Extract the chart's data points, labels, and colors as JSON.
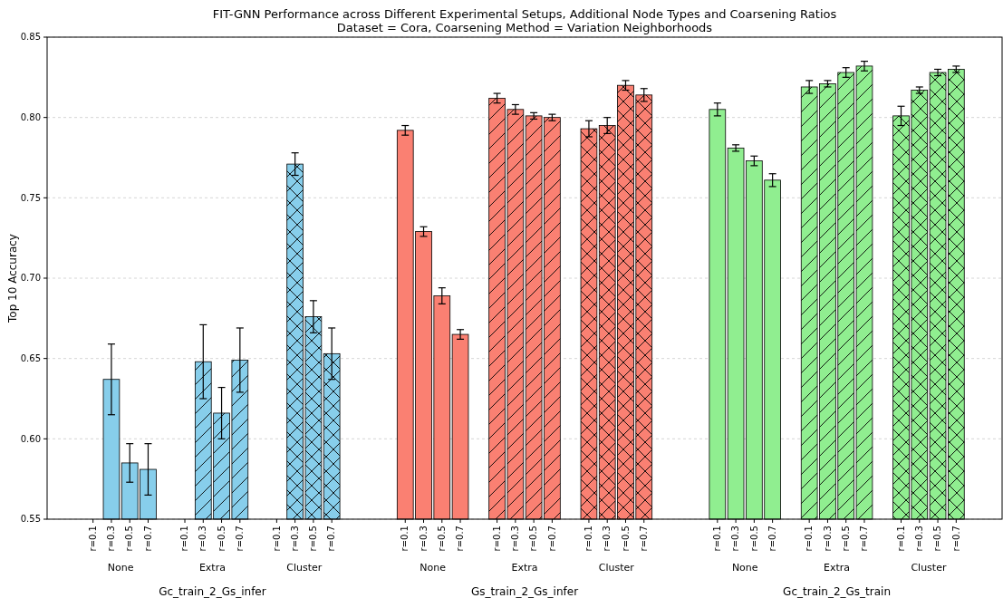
{
  "chart_data": {
    "type": "bar",
    "title": "FIT-GNN Performance across Different Experimental Setups, Additional Node Types and Coarsening Ratios",
    "subtitle": "Dataset = Cora, Coarsening Method = Variation Neighborhoods",
    "ylabel": "Top 10 Accuracy",
    "categories": [
      null,
      null,
      "r=0.1",
      "r=0.3",
      "r=0.5",
      "r=0.7",
      null,
      "r=0.1",
      "r=0.3",
      "r=0.5",
      "r=0.7",
      null,
      "r=0.1",
      "r=0.3",
      "r=0.5",
      "r=0.7",
      null,
      null,
      null,
      "r=0.1",
      "r=0.3",
      "r=0.5",
      "r=0.7",
      null,
      "r=0.1",
      "r=0.3",
      "r=0.5",
      "r=0.7",
      null,
      "r=0.1",
      "r=0.3",
      "r=0.5",
      "r=0.7",
      null,
      null,
      null,
      "r=0.1",
      "r=0.3",
      "r=0.5",
      "r=0.7",
      null,
      "r=0.1",
      "r=0.3",
      "r=0.5",
      "r=0.7",
      null,
      "r=0.1",
      "r=0.3",
      "r=0.5",
      "r=0.7",
      null,
      null
    ],
    "series": [
      {
        "color": "#87ceeb",
        "values": [
          null,
          null,
          null,
          0.637,
          0.585,
          0.581,
          null,
          null,
          0.648,
          0.616,
          0.649,
          null,
          null,
          0.771,
          0.676,
          0.653,
          null,
          null,
          null,
          null,
          null,
          null,
          null,
          null,
          null,
          null,
          null,
          null,
          null,
          null,
          null,
          null,
          null,
          null,
          null,
          null,
          null,
          null,
          null,
          null,
          null,
          null,
          null,
          null,
          null,
          null,
          null,
          null,
          null,
          null,
          null,
          null
        ],
        "errors": [
          null,
          null,
          null,
          0.022,
          0.012,
          0.016,
          null,
          null,
          0.023,
          0.016,
          0.02,
          null,
          null,
          0.007,
          0.01,
          0.016,
          null,
          null,
          null,
          null,
          null,
          null,
          null,
          null,
          null,
          null,
          null,
          null,
          null,
          null,
          null,
          null,
          null,
          null,
          null,
          null,
          null,
          null,
          null,
          null,
          null,
          null,
          null,
          null,
          null,
          null,
          null,
          null,
          null,
          null,
          null,
          null
        ]
      },
      {
        "color": "#fa8072",
        "values": [
          null,
          null,
          null,
          null,
          null,
          null,
          null,
          null,
          null,
          null,
          null,
          null,
          null,
          null,
          null,
          null,
          null,
          null,
          null,
          0.792,
          0.729,
          0.689,
          0.665,
          null,
          0.812,
          0.805,
          0.801,
          0.8,
          null,
          0.793,
          0.795,
          0.82,
          0.814,
          null,
          null,
          null,
          null,
          null,
          null,
          null,
          null,
          null,
          null,
          null,
          null,
          null,
          null,
          null,
          null,
          null,
          null,
          null
        ],
        "errors": [
          null,
          null,
          null,
          null,
          null,
          null,
          null,
          null,
          null,
          null,
          null,
          null,
          null,
          null,
          null,
          null,
          null,
          null,
          null,
          0.003,
          0.003,
          0.005,
          0.003,
          null,
          0.003,
          0.003,
          0.002,
          0.002,
          null,
          0.005,
          0.005,
          0.003,
          0.004,
          null,
          null,
          null,
          null,
          null,
          null,
          null,
          null,
          null,
          null,
          null,
          null,
          null,
          null,
          null,
          null,
          null,
          null,
          null
        ]
      },
      {
        "color": "#90ee90",
        "values": [
          null,
          null,
          null,
          null,
          null,
          null,
          null,
          null,
          null,
          null,
          null,
          null,
          null,
          null,
          null,
          null,
          null,
          null,
          null,
          null,
          null,
          null,
          null,
          null,
          null,
          null,
          null,
          null,
          null,
          null,
          null,
          null,
          null,
          null,
          null,
          null,
          0.805,
          0.781,
          0.773,
          0.761,
          null,
          0.819,
          0.821,
          0.828,
          0.832,
          null,
          0.801,
          0.817,
          0.828,
          0.83,
          null,
          null
        ],
        "errors": [
          null,
          null,
          null,
          null,
          null,
          null,
          null,
          null,
          null,
          null,
          null,
          null,
          null,
          null,
          null,
          null,
          null,
          null,
          null,
          null,
          null,
          null,
          null,
          null,
          null,
          null,
          null,
          null,
          null,
          null,
          null,
          null,
          null,
          null,
          null,
          null,
          0.004,
          0.002,
          0.003,
          0.004,
          null,
          0.004,
          0.002,
          0.003,
          0.003,
          null,
          0.006,
          0.002,
          0.002,
          0.002,
          null,
          null
        ]
      }
    ],
    "annotations": [
      "None",
      "Extra",
      "Cluster",
      "None",
      "Extra",
      "Cluster",
      "None",
      "Extra",
      "Cluster",
      "Gc_train_2_Gs_infer",
      "Gs_train_2_Gs_infer",
      "Gc_train_2_Gs_train"
    ],
    "ylim": [
      0.55,
      0.85
    ],
    "yticks": [
      {
        "value": 0.55,
        "label": "0.55"
      },
      {
        "value": 0.6,
        "label": "0.60"
      },
      {
        "value": 0.65,
        "label": "0.65"
      },
      {
        "value": 0.7,
        "label": "0.70"
      },
      {
        "value": 0.75,
        "label": "0.75"
      },
      {
        "value": 0.8,
        "label": "0.80"
      },
      {
        "value": 0.85,
        "label": "0.85"
      }
    ],
    "grid": "y"
  }
}
